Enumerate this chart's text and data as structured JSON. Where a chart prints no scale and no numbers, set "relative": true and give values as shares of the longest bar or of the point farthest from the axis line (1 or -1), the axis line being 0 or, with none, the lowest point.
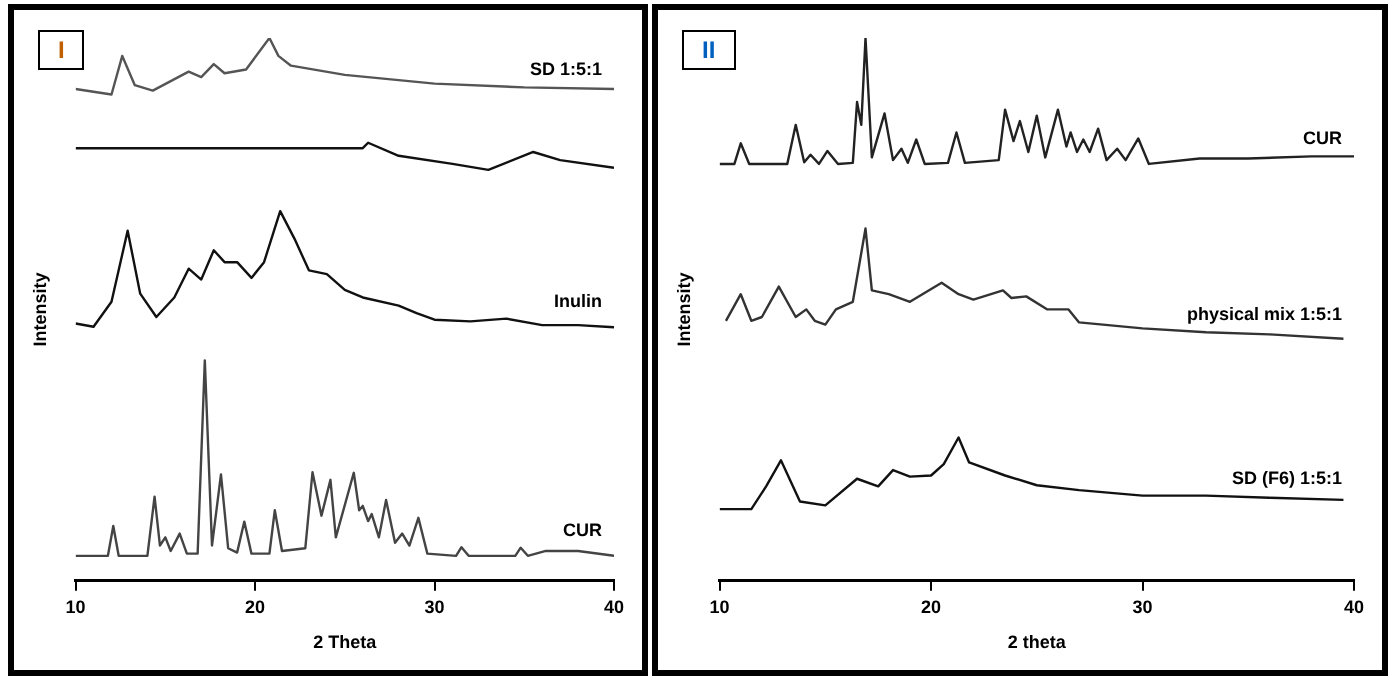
{
  "chart_data": [
    {
      "type": "line",
      "relative": true,
      "xlabel": "2 Theta",
      "ylabel": "Intensity",
      "annotations": [
        "I"
      ],
      "xlim": [
        10,
        40
      ],
      "xticks": [
        10,
        20,
        30,
        40
      ],
      "series": [
        {
          "name": "SD 1:5:1",
          "color": "#555555",
          "x": [
            10,
            12,
            12.6,
            13.3,
            14.3,
            16.3,
            17,
            17.7,
            18.3,
            19.5,
            20.8,
            21.3,
            22,
            25,
            30,
            35,
            40
          ],
          "values": [
            0.906,
            0.896,
            0.967,
            0.913,
            0.903,
            0.938,
            0.928,
            0.952,
            0.935,
            0.942,
            1,
            0.967,
            0.949,
            0.932,
            0.916,
            0.909,
            0.906
          ]
        },
        {
          "color": "#111111",
          "x": [
            10,
            26,
            26.3,
            28,
            31,
            33,
            35.5,
            37,
            40
          ],
          "values": [
            0.797,
            0.797,
            0.807,
            0.783,
            0.768,
            0.757,
            0.79,
            0.775,
            0.761
          ]
        },
        {
          "name": "Inulin",
          "color": "#111111",
          "x": [
            10,
            11,
            12,
            12.9,
            13.6,
            14.5,
            15.5,
            16.3,
            17,
            17.7,
            18.3,
            19,
            19.8,
            20.5,
            21.4,
            22.2,
            23,
            24,
            25,
            26,
            28,
            29,
            30,
            32,
            34,
            36,
            38,
            40
          ],
          "values": [
            0.474,
            0.468,
            0.514,
            0.645,
            0.529,
            0.486,
            0.522,
            0.575,
            0.555,
            0.609,
            0.587,
            0.587,
            0.558,
            0.587,
            0.681,
            0.63,
            0.572,
            0.565,
            0.536,
            0.522,
            0.507,
            0.493,
            0.481,
            0.478,
            0.483,
            0.471,
            0.471,
            0.467
          ]
        },
        {
          "name": "CUR",
          "color": "#444444",
          "x": [
            10,
            11.8,
            12.1,
            12.4,
            14,
            14.4,
            14.7,
            15,
            15.3,
            15.8,
            16.2,
            16.8,
            17.2,
            17.6,
            18.1,
            18.5,
            19,
            19.4,
            19.8,
            20.8,
            21.1,
            21.5,
            22.8,
            23.2,
            23.7,
            24.2,
            24.5,
            25.5,
            25.8,
            26,
            26.3,
            26.5,
            26.9,
            27.3,
            27.8,
            28.2,
            28.6,
            29.1,
            29.6,
            31.2,
            31.5,
            31.9,
            34.5,
            34.8,
            35.2,
            36.2,
            38,
            40
          ],
          "values": [
            0.046,
            0.046,
            0.101,
            0.046,
            0.046,
            0.155,
            0.065,
            0.08,
            0.055,
            0.087,
            0.05,
            0.05,
            0.406,
            0.065,
            0.196,
            0.06,
            0.052,
            0.109,
            0.05,
            0.05,
            0.13,
            0.055,
            0.06,
            0.2,
            0.12,
            0.186,
            0.08,
            0.199,
            0.13,
            0.138,
            0.11,
            0.123,
            0.08,
            0.149,
            0.07,
            0.087,
            0.065,
            0.116,
            0.05,
            0.046,
            0.062,
            0.046,
            0.046,
            0.061,
            0.046,
            0.055,
            0.055,
            0.046
          ]
        }
      ]
    },
    {
      "type": "line",
      "relative": true,
      "xlabel": "2 theta",
      "ylabel": "Intensity",
      "annotations": [
        "II"
      ],
      "xlim": [
        10,
        40
      ],
      "xticks": [
        10,
        20,
        30,
        40
      ],
      "series": [
        {
          "name": "CUR",
          "color": "#222222",
          "x": [
            10,
            10.7,
            11,
            11.4,
            13.2,
            13.6,
            14,
            14.3,
            14.7,
            15.1,
            15.6,
            16.3,
            16.5,
            16.7,
            16.9,
            17.2,
            17.8,
            18.2,
            18.6,
            18.9,
            19.3,
            19.7,
            20.8,
            21.2,
            21.6,
            23.2,
            23.5,
            23.9,
            24.2,
            24.6,
            25,
            25.4,
            26,
            26.4,
            26.6,
            26.9,
            27.2,
            27.5,
            27.9,
            28.3,
            28.8,
            29.2,
            29.8,
            30.3,
            32.7,
            35,
            38,
            40
          ],
          "values": [
            0.768,
            0.768,
            0.806,
            0.768,
            0.768,
            0.84,
            0.771,
            0.785,
            0.768,
            0.792,
            0.768,
            0.77,
            0.882,
            0.84,
            1,
            0.78,
            0.861,
            0.775,
            0.796,
            0.77,
            0.813,
            0.768,
            0.77,
            0.826,
            0.77,
            0.775,
            0.868,
            0.81,
            0.847,
            0.79,
            0.857,
            0.78,
            0.868,
            0.8,
            0.826,
            0.79,
            0.813,
            0.79,
            0.833,
            0.775,
            0.796,
            0.775,
            0.815,
            0.768,
            0.778,
            0.778,
            0.782,
            0.782
          ]
        },
        {
          "name": "physical mix 1:5:1",
          "color": "#333333",
          "x": [
            10.3,
            11,
            11.5,
            12,
            12.8,
            13.6,
            14.1,
            14.5,
            15,
            15.5,
            16.3,
            16.9,
            17.2,
            18,
            19,
            20.5,
            21.3,
            22,
            23.4,
            23.8,
            24.5,
            25.5,
            26.5,
            27,
            30,
            33,
            36,
            39.5
          ],
          "values": [
            0.479,
            0.528,
            0.479,
            0.486,
            0.542,
            0.486,
            0.5,
            0.479,
            0.472,
            0.5,
            0.514,
            0.649,
            0.535,
            0.528,
            0.514,
            0.549,
            0.528,
            0.518,
            0.535,
            0.521,
            0.524,
            0.5,
            0.5,
            0.476,
            0.465,
            0.458,
            0.454,
            0.446
          ]
        },
        {
          "name": "SD (F6) 1:5:1",
          "color": "#111111",
          "x": [
            10,
            11.5,
            12.2,
            12.9,
            13.8,
            15,
            16.5,
            17.5,
            18.2,
            19,
            20,
            20.6,
            21.3,
            21.8,
            23.5,
            25,
            27,
            30,
            33,
            36,
            39.5
          ],
          "values": [
            0.132,
            0.132,
            0.174,
            0.222,
            0.146,
            0.139,
            0.188,
            0.174,
            0.204,
            0.192,
            0.194,
            0.215,
            0.264,
            0.218,
            0.194,
            0.176,
            0.167,
            0.157,
            0.157,
            0.153,
            0.149
          ]
        }
      ]
    }
  ]
}
